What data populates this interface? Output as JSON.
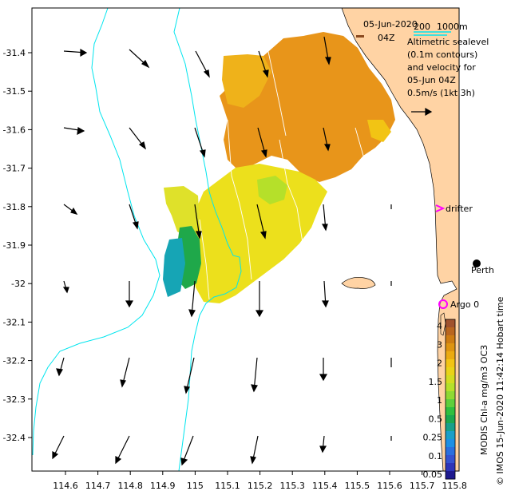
{
  "header": {
    "date": "05-Jun-2020",
    "time": "04Z",
    "scale_min": "200",
    "scale_max": "1000m"
  },
  "legend": {
    "lines": [
      "Altimetric sealevel",
      "(0.1m contours)",
      "and velocity for",
      "05-Jun 04Z",
      "0.5m/s (1kt 3h)"
    ]
  },
  "labels": {
    "drifter": "drifter",
    "argo": "Argo 0",
    "perth": "Perth",
    "side_left": "MODIS Chl-a mg/m3 OC3",
    "side_right": "© IMOS 15-Jun-2020 11:42:14 Hobart time"
  },
  "axes": {
    "x_ticks": [
      "114.6",
      "114.7",
      "114.8",
      "114.9",
      "115",
      "115.1",
      "115.2",
      "115.3",
      "115.4",
      "115.5",
      "115.6",
      "115.7",
      "115.8"
    ],
    "y_ticks": [
      "-31.4",
      "-31.5",
      "-31.6",
      "-31.7",
      "-31.8",
      "-31.9",
      "-32",
      "-32.1",
      "-32.2",
      "-32.3",
      "-32.4"
    ]
  },
  "colorbar": {
    "labels": [
      "4",
      "3",
      "2",
      "1.5",
      "1",
      "0.5",
      "0.25",
      "0.1",
      "0.05"
    ],
    "colors": [
      "#a0522d",
      "#b9661f",
      "#cd7c12",
      "#de9410",
      "#ebaa10",
      "#f2c414",
      "#e9d318",
      "#d2dc20",
      "#b5e02a",
      "#8fd933",
      "#5fcf3c",
      "#2fbf3f",
      "#1aa84f",
      "#17a08a",
      "#1a9fc8",
      "#1d8fe4",
      "#2a6fde",
      "#3452d0",
      "#2d34b8",
      "#1f1a8f"
    ]
  },
  "colors": {
    "land": "#ffd3a4",
    "ocean": "#ffffff",
    "bathymetry": "#00e5ee",
    "arrow": "#000000",
    "drifter": "#ff00ff",
    "argo": "#ff00ff",
    "sealevel_contour": "#ffffff",
    "chl_orange": "#e8951a",
    "chl_yellow": "#ece01c",
    "chl_green": "#1fa84a",
    "chl_teal": "#16a5b5"
  }
}
